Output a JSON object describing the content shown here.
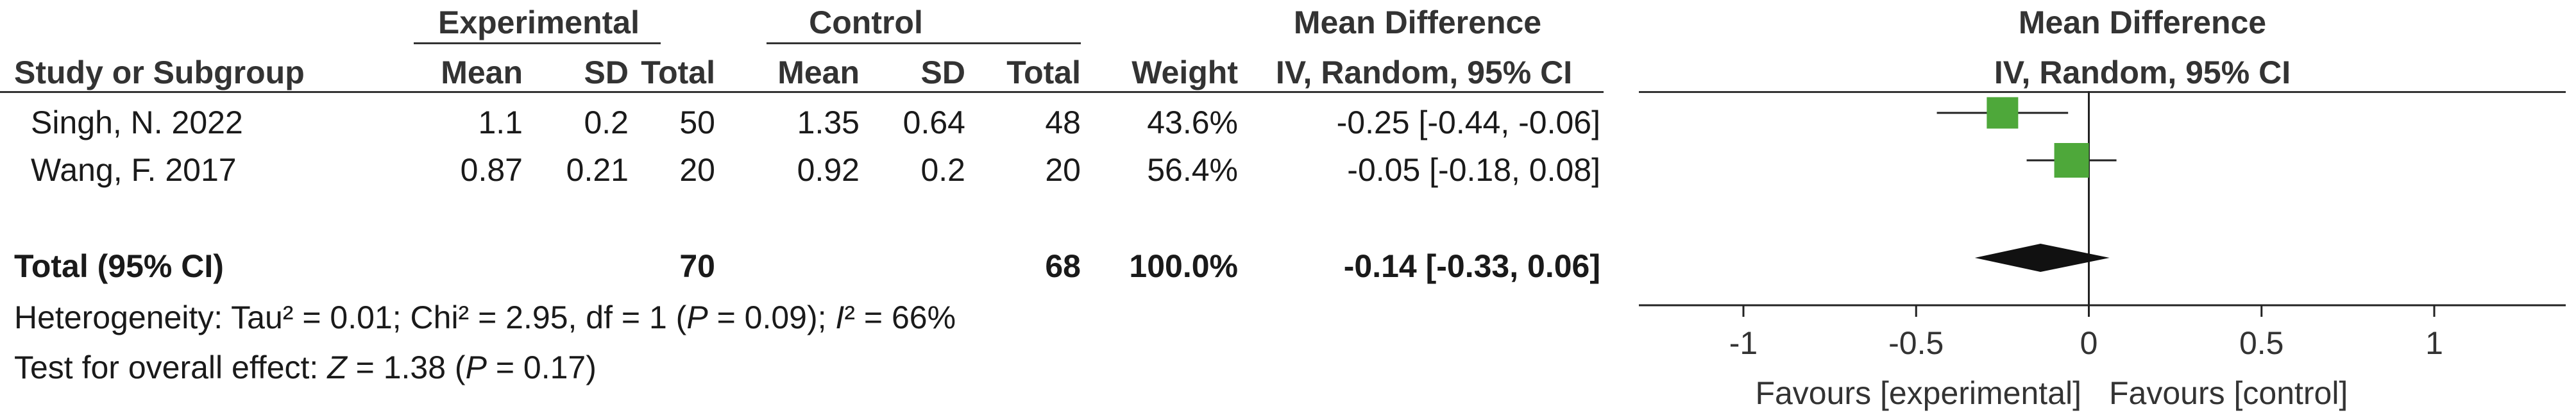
{
  "header": {
    "experimental": "Experimental",
    "control": "Control",
    "mean_difference": "Mean Difference",
    "plot_title": "Mean Difference",
    "plot_subtitle": "IV, Random, 95% CI",
    "cols": {
      "study": "Study or Subgroup",
      "e_mean": "Mean",
      "e_sd": "SD",
      "e_total": "Total",
      "c_mean": "Mean",
      "c_sd": "SD",
      "c_total": "Total",
      "weight": "Weight",
      "md": "IV, Random, 95% CI"
    }
  },
  "rows": [
    {
      "study": "Singh, N. 2022",
      "e_mean": "1.1",
      "e_sd": "0.2",
      "e_total": "50",
      "c_mean": "1.35",
      "c_sd": "0.64",
      "c_total": "48",
      "weight": "43.6%",
      "md": "-0.25 [-0.44, -0.06]"
    },
    {
      "study": "Wang, F.  2017",
      "e_mean": "0.87",
      "e_sd": "0.21",
      "e_total": "20",
      "c_mean": "0.92",
      "c_sd": "0.2",
      "c_total": "20",
      "weight": "56.4%",
      "md": "-0.05 [-0.18, 0.08]"
    }
  ],
  "total": {
    "label": "Total (95% CI)",
    "e_total": "70",
    "c_total": "68",
    "weight": "100.0%",
    "md": "-0.14 [-0.33, 0.06]"
  },
  "heterogeneity": {
    "prefix": "Heterogeneity: Tau² = 0.01; Chi² = 2.95, df = 1 (",
    "p": "P",
    "mid": " = 0.09); ",
    "i": "I",
    "suffix": "² = 66%"
  },
  "overall": {
    "prefix": "Test for overall effect: ",
    "z": "Z",
    "mid": " = 1.38 (",
    "p": "P",
    "suffix": " = 0.17)"
  },
  "axis": {
    "favours_left": "Favours [experimental]",
    "favours_right": "Favours [control]"
  },
  "colors": {
    "box": "#4ea83a",
    "diamond": "#111111",
    "line": "#222222"
  },
  "chart_data": {
    "type": "forest",
    "xlim": [
      -1,
      1
    ],
    "ticks": [
      {
        "value": -1,
        "label": "-1"
      },
      {
        "value": -0.5,
        "label": "-0.5"
      },
      {
        "value": 0,
        "label": "0"
      },
      {
        "value": 0.5,
        "label": "0.5"
      },
      {
        "value": 1,
        "label": "1"
      }
    ],
    "studies": [
      {
        "name": "Singh, N. 2022",
        "estimate": -0.25,
        "lower": -0.44,
        "upper": -0.06,
        "weight": 43.6
      },
      {
        "name": "Wang, F.  2017",
        "estimate": -0.05,
        "lower": -0.18,
        "upper": 0.08,
        "weight": 56.4
      }
    ],
    "pooled": {
      "estimate": -0.14,
      "lower": -0.33,
      "upper": 0.06
    }
  }
}
